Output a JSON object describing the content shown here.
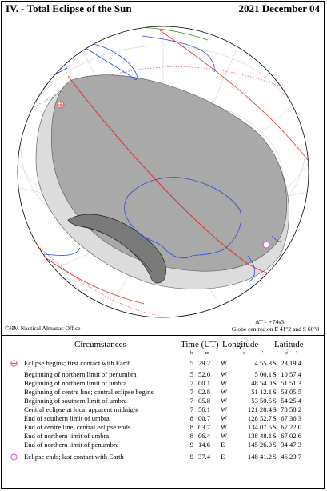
{
  "header": {
    "title": "IV. - Total Eclipse of the Sun",
    "date": "2021 December 04"
  },
  "map": {
    "copyright": "©HM Nautical Almanac Office",
    "delta_t": "ΔT = +74s3",
    "globe_centre": "Globe centred on E 41°2 and S 66°8"
  },
  "table": {
    "headers": {
      "circumstances": "Circumstances",
      "time": "Time (UT)",
      "longitude": "Longitude",
      "latitude": "Latitude"
    },
    "units": {
      "h": "h",
      "m": "m",
      "lon_deg": "o",
      "lon_min": "'",
      "lat_deg": "o",
      "lat_min": "'"
    },
    "rows": [
      {
        "label": "Eclipse begins; first contact with Earth",
        "h": "5",
        "m": "29.2",
        "dir": "W",
        "lon": "4  55.3",
        "ns": "S",
        "lat": "23  19.4",
        "marker": "first-contact"
      },
      {
        "label": "Beginning of northern limit of penumbra",
        "h": "5",
        "m": "52.0",
        "dir": "W",
        "lon": "5  00.1",
        "ns": "S",
        "lat": "10  57.4"
      },
      {
        "label": "Beginning of northern limit of umbra",
        "h": "7",
        "m": "00.1",
        "dir": "W",
        "lon": "48  54.0",
        "ns": "S",
        "lat": "51  51.3"
      },
      {
        "label": "Beginning of centre line; central eclipse begins",
        "h": "7",
        "m": "02.8",
        "dir": "W",
        "lon": "51  12.1",
        "ns": "S",
        "lat": "53  05.5"
      },
      {
        "label": "Beginning of southern limit of umbra",
        "h": "7",
        "m": "05.8",
        "dir": "W",
        "lon": "53  50.5",
        "ns": "S",
        "lat": "54  25.4"
      },
      {
        "label": "Central eclipse at local apparent midnight",
        "h": "7",
        "m": "56.1",
        "dir": "W",
        "lon": "121  28.4",
        "ns": "S",
        "lat": "78  58.2"
      },
      {
        "label": "End of southern limit of umbra",
        "h": "8",
        "m": "00.7",
        "dir": "W",
        "lon": "128  52.7",
        "ns": "S",
        "lat": "67  36.3"
      },
      {
        "label": "End of centre line; central eclipse ends",
        "h": "8",
        "m": "03.7",
        "dir": "W",
        "lon": "134  07.5",
        "ns": "S",
        "lat": "67  22.0"
      },
      {
        "label": "End of northern limit of umbra",
        "h": "8",
        "m": "06.4",
        "dir": "W",
        "lon": "138  48.1",
        "ns": "S",
        "lat": "67  02.6"
      },
      {
        "label": "End of northern limit of penumbra",
        "h": "9",
        "m": "14.6",
        "dir": "E",
        "lon": "145  26.0",
        "ns": "S",
        "lat": "34  47.3"
      },
      {
        "label": "Eclipse ends; last contact with Earth",
        "h": "9",
        "m": "37.4",
        "dir": "E",
        "lon": "148  41.2",
        "ns": "S",
        "lat": "46  23.7",
        "marker": "last-contact"
      }
    ]
  },
  "colors": {
    "penumbra_light": "#dcdcdc",
    "penumbra_dark": "#a9a9a9",
    "umbra_band": "#7a7a7a",
    "coast_land": "#2b4bd6",
    "coast_north": "#2a8a2a",
    "terminator": "#e03030",
    "first_contact": "#e05050",
    "last_contact": "#d048d0"
  },
  "icons": {
    "first_contact": "circled-plus-icon",
    "last_contact": "circle-icon"
  }
}
